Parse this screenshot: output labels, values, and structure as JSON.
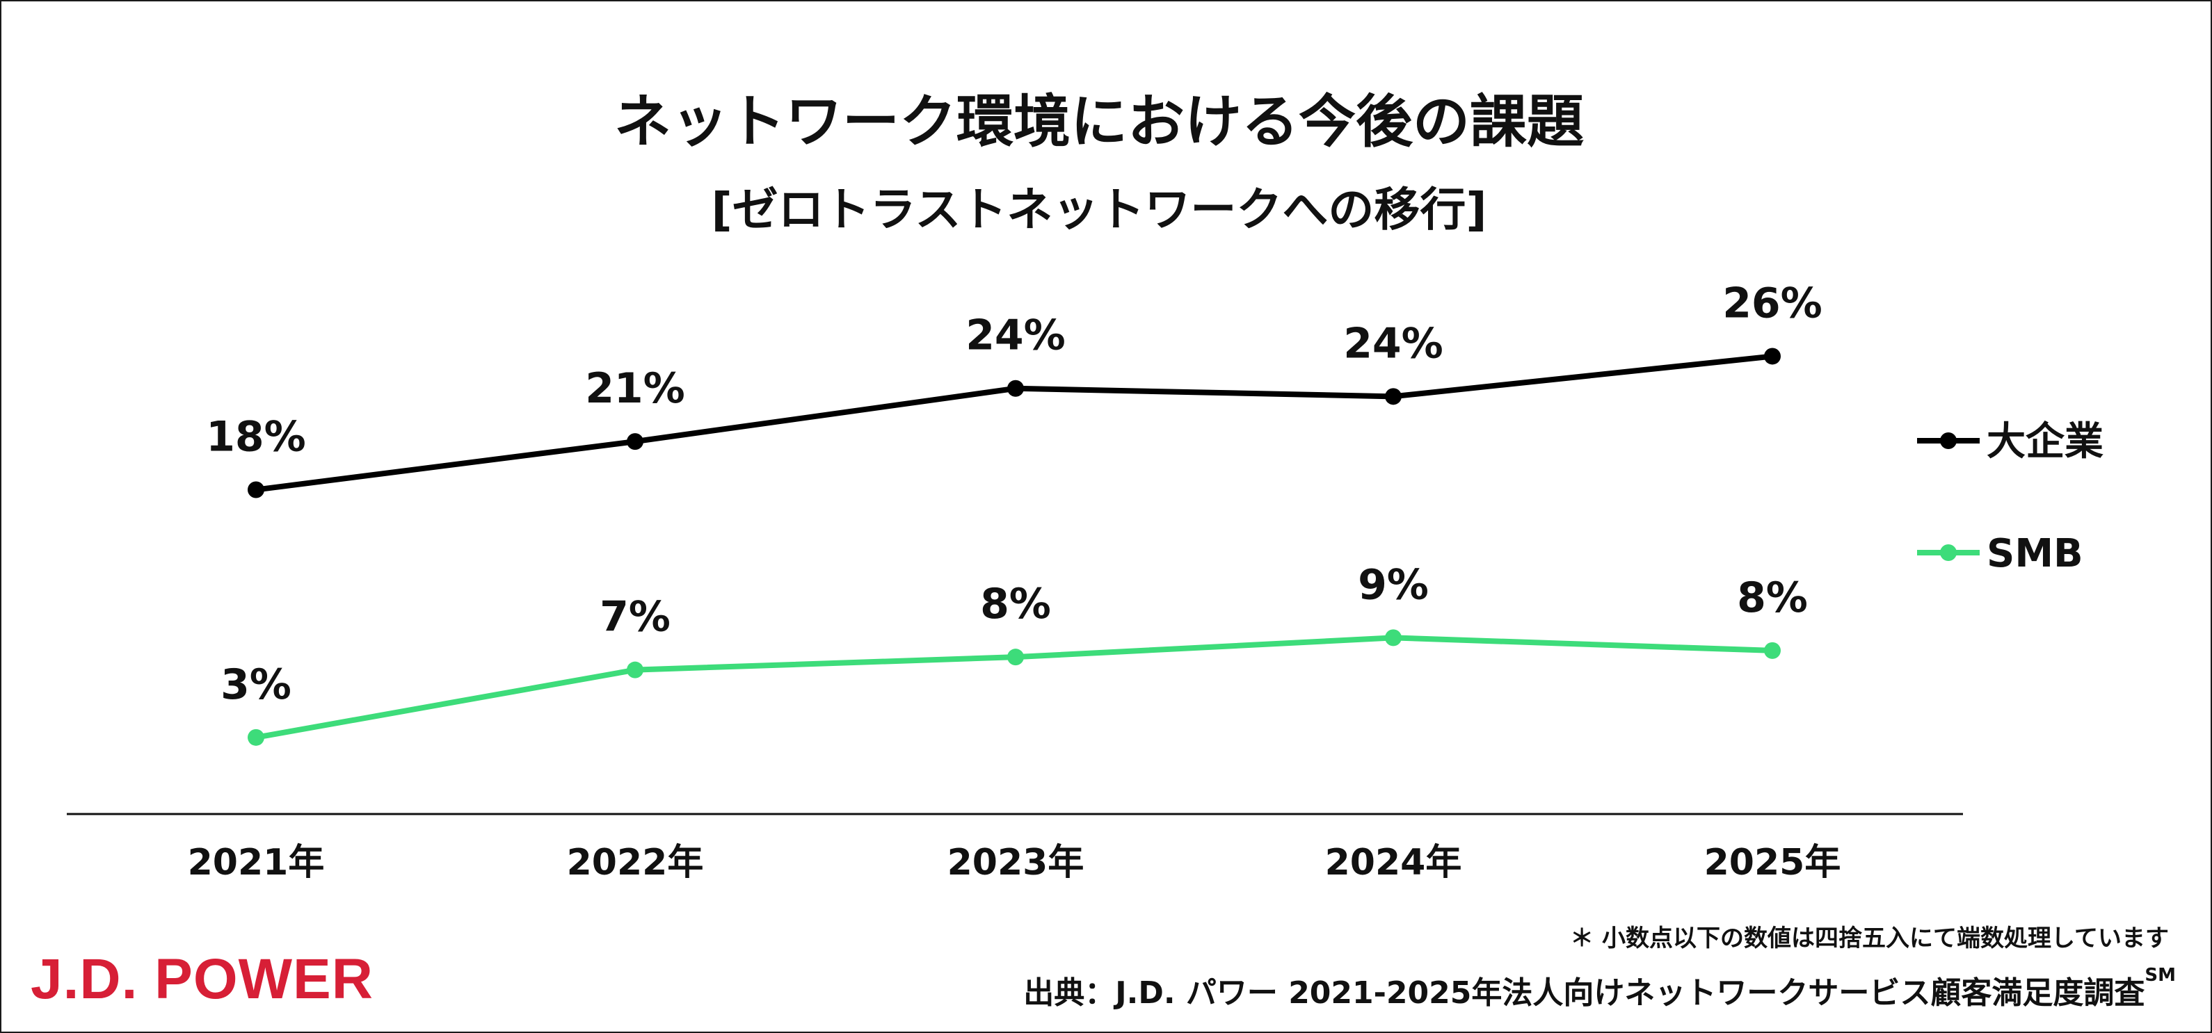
{
  "header": {
    "title": "ネットワーク環境における今後の課題",
    "subtitle": "[ゼロトラストネットワークへの移行]"
  },
  "chart_data": {
    "type": "line",
    "categories": [
      "2021年",
      "2022年",
      "2023年",
      "2024年",
      "2025年"
    ],
    "series": [
      {
        "name": "大企業",
        "values": [
          18,
          21,
          24,
          24,
          26
        ],
        "labels": [
          "18%",
          "21%",
          "24%",
          "24%",
          "26%"
        ],
        "color": "#000000"
      },
      {
        "name": "SMB",
        "values": [
          3,
          7,
          8,
          9,
          8
        ],
        "labels": [
          "3%",
          "7%",
          "8%",
          "9%",
          "8%"
        ],
        "color": "#3ddc7a"
      }
    ],
    "value_fine": [
      [
        18.0,
        21.0,
        24.3,
        23.8,
        26.3
      ],
      [
        2.6,
        6.8,
        7.6,
        8.8,
        8.0
      ]
    ],
    "ylim": [
      0,
      29
    ],
    "legend_position": "right",
    "grid": false,
    "xlabel": "",
    "ylabel": ""
  },
  "footer": {
    "note": "＊ 小数点以下の数値は四捨五入にて端数処理しています",
    "source_prefix": "出典：J.D. パワー 2021-2025年法人向けネットワークサービス顧客満足度調査",
    "source_sup": "SM",
    "logo_text": "J.D. POWER",
    "logo_color": "#d71f36"
  }
}
